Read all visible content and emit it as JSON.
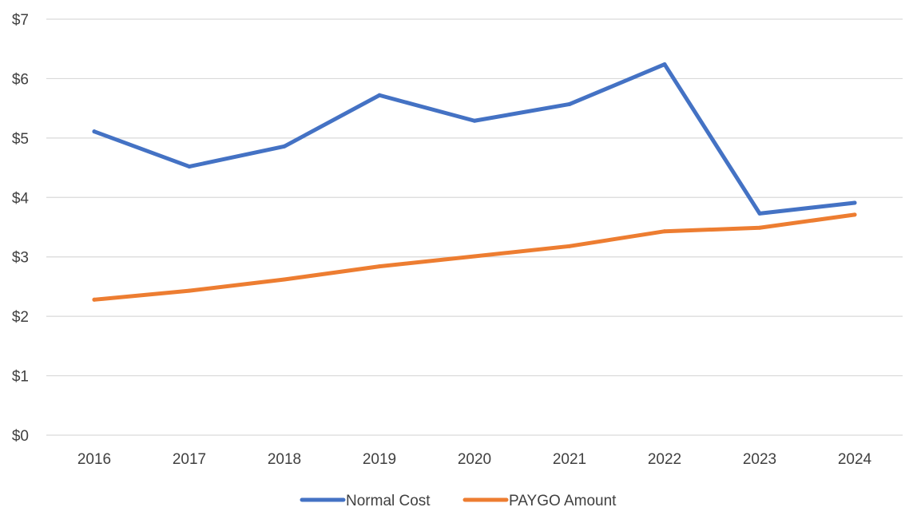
{
  "chart_data": {
    "type": "line",
    "title": "",
    "xlabel": "",
    "ylabel": "",
    "categories": [
      "2016",
      "2017",
      "2018",
      "2019",
      "2020",
      "2021",
      "2022",
      "2023",
      "2024"
    ],
    "y_ticks": [
      0,
      1,
      2,
      3,
      4,
      5,
      6,
      7
    ],
    "y_tick_labels": [
      "$0",
      "$1",
      "$2",
      "$3",
      "$4",
      "$5",
      "$6",
      "$7"
    ],
    "ylim": [
      0,
      7
    ],
    "grid": "horizontal",
    "legend_position": "bottom",
    "series": [
      {
        "name": "Normal Cost",
        "color": "#4472c4",
        "values": [
          5.11,
          4.52,
          4.86,
          5.72,
          5.29,
          5.57,
          6.24,
          3.73,
          3.91
        ]
      },
      {
        "name": "PAYGO Amount",
        "color": "#ed7d31",
        "values": [
          2.28,
          2.43,
          2.62,
          2.84,
          3.01,
          3.18,
          3.43,
          3.49,
          3.71
        ]
      }
    ]
  }
}
